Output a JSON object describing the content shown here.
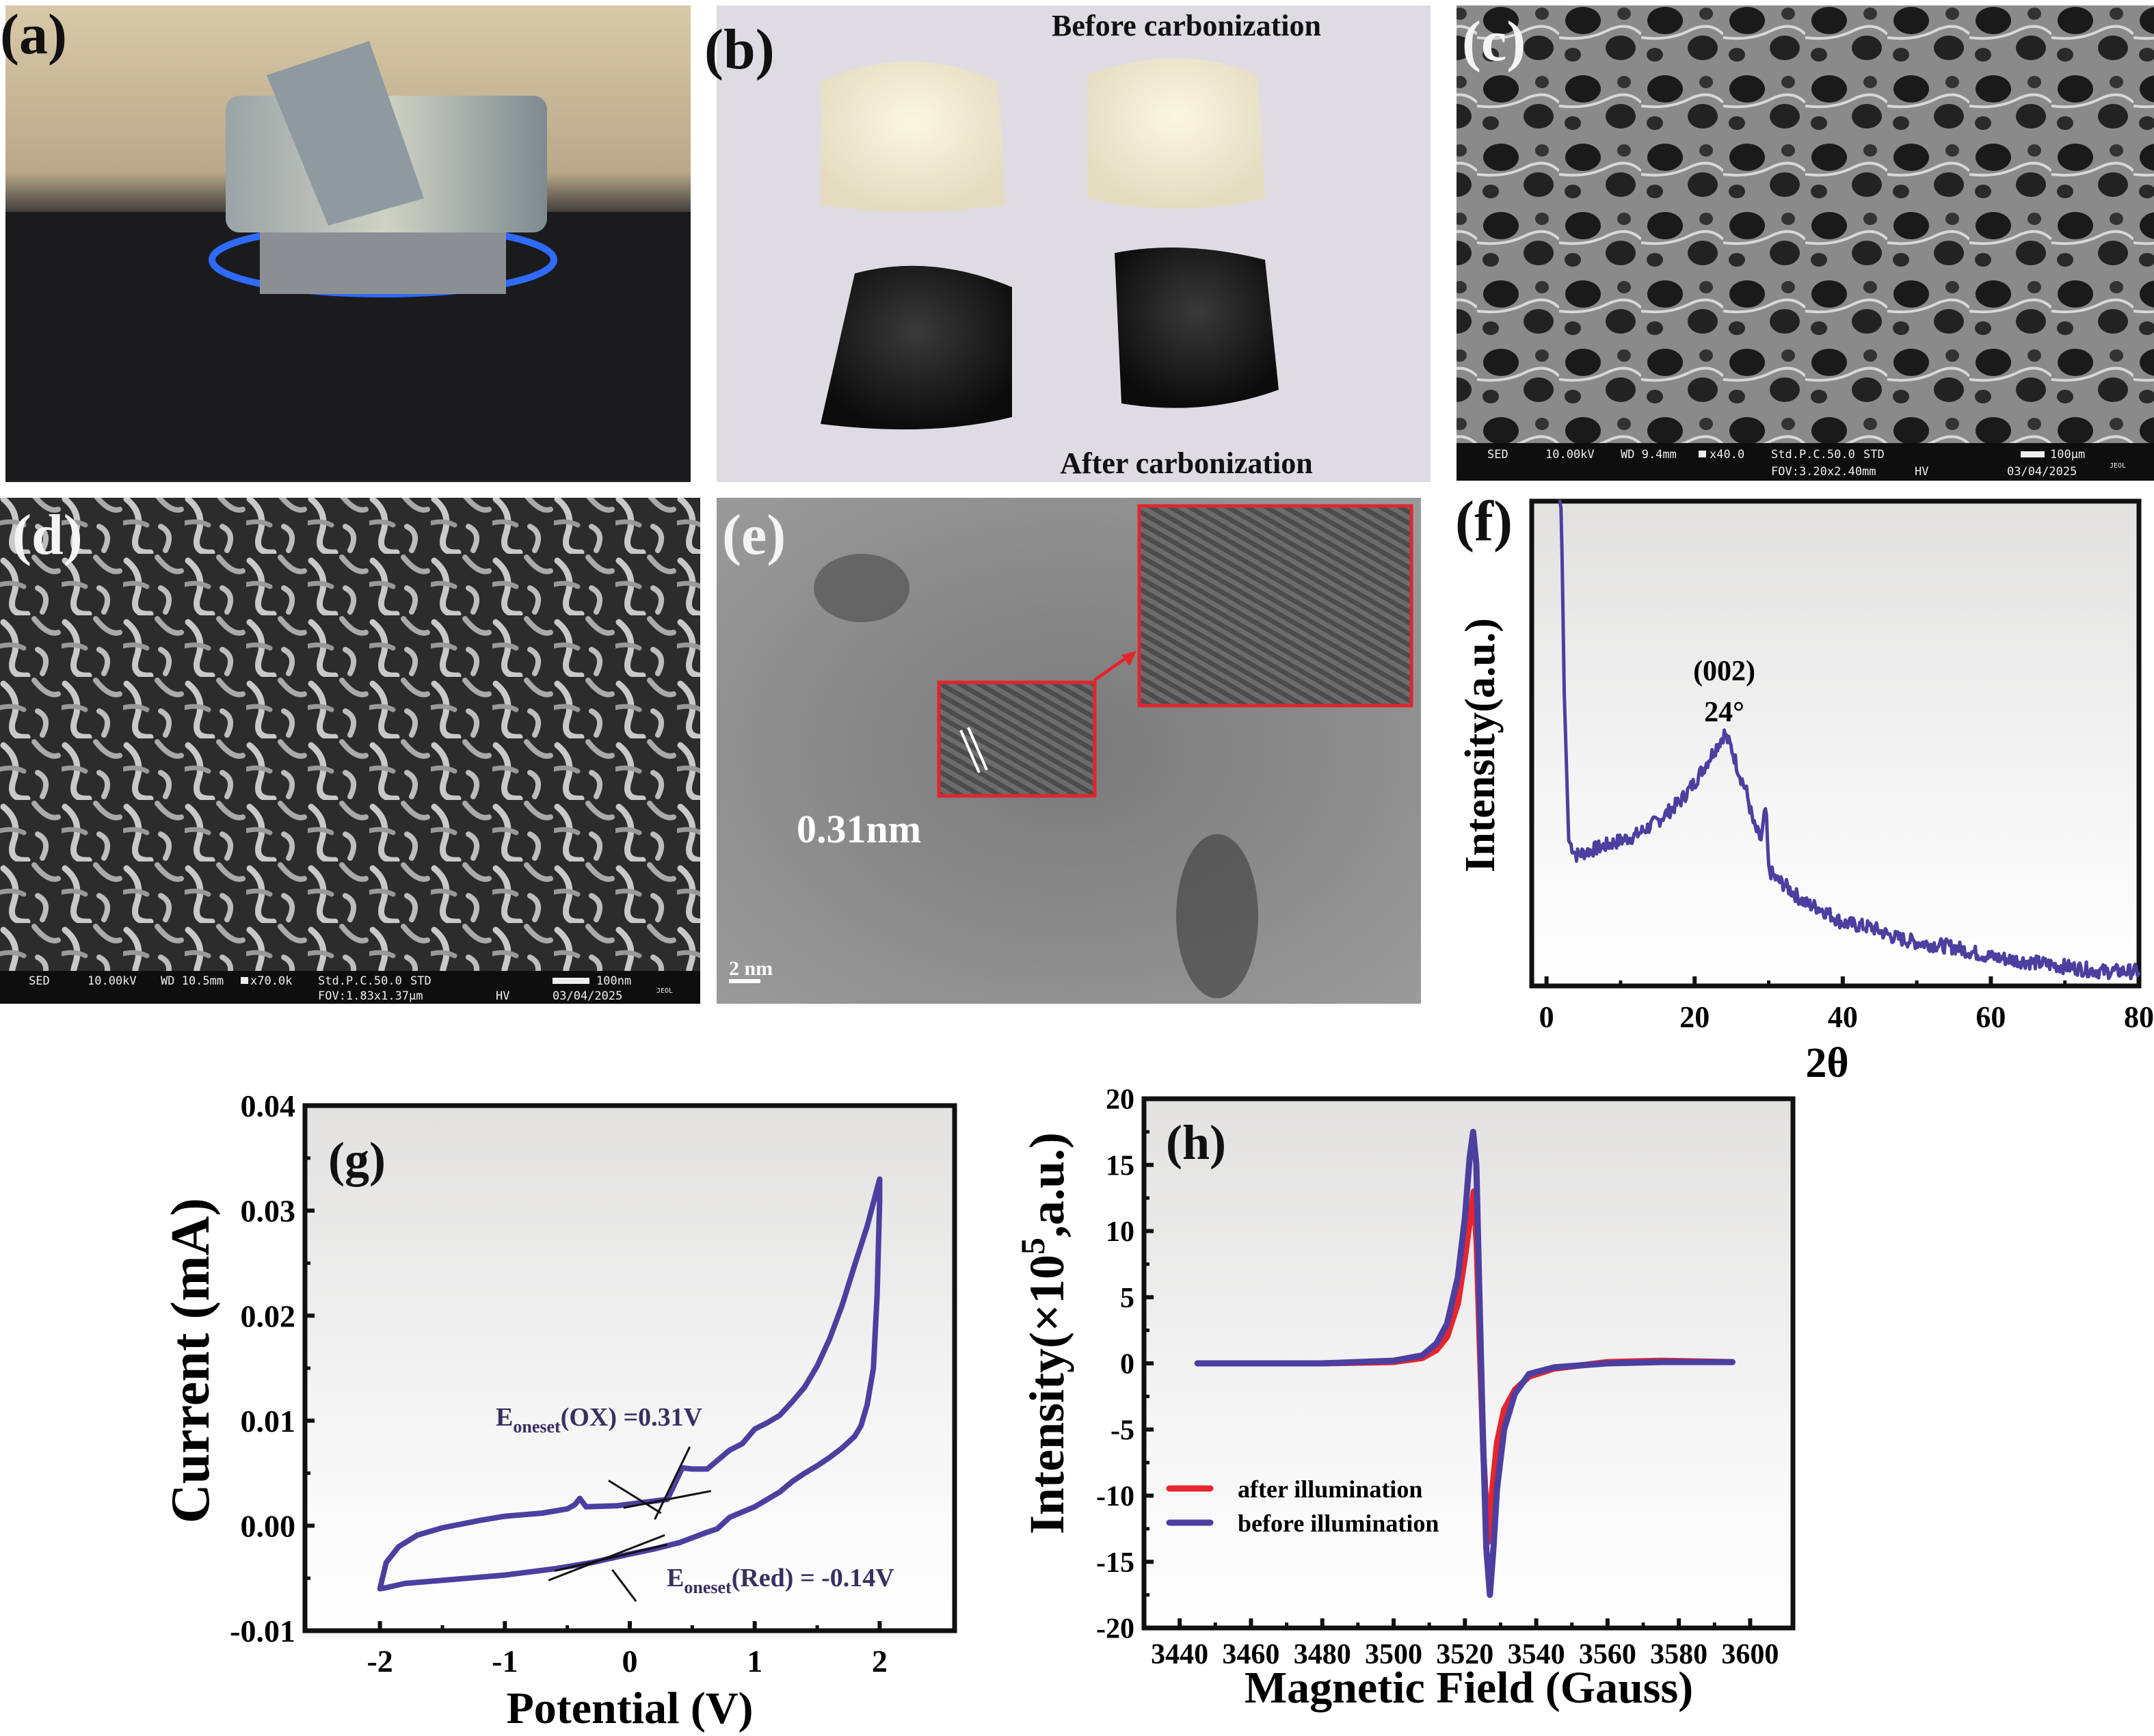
{
  "panels": {
    "a": {
      "label": "(a)"
    },
    "b": {
      "label": "(b)",
      "top_caption": "Before carbonization",
      "bottom_caption": "After carbonization"
    },
    "c": {
      "label": "(c)",
      "info": {
        "detector": "SED",
        "kv": "10.00kV",
        "wd": "WD 9.4mm",
        "mag": "x40.0",
        "mode": "Std.P.C.50.0",
        "std": "STD",
        "fov": "FOV:3.20x2.40mm",
        "hv": "HV",
        "scale": "100μm",
        "date": "03/04/2025",
        "brand": "JEOL"
      }
    },
    "d": {
      "label": "(d)",
      "info": {
        "detector": "SED",
        "kv": "10.00kV",
        "wd": "WD 10.5mm",
        "mag": "x70.0k",
        "mode": "Std.P.C.50.0",
        "std": "STD",
        "fov": "FOV:1.83x1.37μm",
        "hv": "HV",
        "scale": "100nm",
        "date": "03/04/2025",
        "brand": "JEOL"
      }
    },
    "e": {
      "label": "(e)",
      "spacing": "0.31nm",
      "scale": "2 nm"
    },
    "f": {
      "label": "(f)"
    },
    "g": {
      "label": "(g)"
    },
    "h": {
      "label": "(h)"
    }
  },
  "colors": {
    "series_blue": "#4b3fa0",
    "series_red": "#e8242c",
    "inset_box": "#e0262b"
  },
  "chart_data": [
    {
      "id": "f",
      "type": "line",
      "xlabel": "2θ",
      "ylabel": "Intensity(a.u.)",
      "xlim": [
        -2,
        80
      ],
      "ylim": [
        0,
        100
      ],
      "xticks": [
        0,
        20,
        40,
        60,
        80
      ],
      "xtick_labels": [
        "0",
        "20",
        "40",
        "60",
        "80"
      ],
      "yticks": [],
      "grid": false,
      "annotation": {
        "line1": "(002)",
        "line2": "24°",
        "x": 24
      },
      "series": [
        {
          "x": [
            1.8,
            2,
            2.4,
            3,
            4,
            6,
            8,
            10,
            12,
            15,
            18,
            20,
            22,
            24,
            25,
            26,
            27,
            28,
            29,
            29.6,
            30,
            31,
            32,
            35,
            37,
            40,
            44,
            47,
            50,
            55,
            60,
            65,
            70,
            75,
            80
          ],
          "y": [
            100,
            98,
            60,
            30,
            27,
            28,
            29,
            30,
            31,
            34,
            38,
            42,
            47,
            52,
            49,
            44,
            40,
            33,
            30,
            37,
            24,
            22,
            21,
            17,
            16,
            13,
            12,
            10,
            9,
            8,
            6,
            5,
            4,
            3,
            3
          ]
        }
      ]
    },
    {
      "id": "g",
      "type": "line",
      "xlabel": "Potential (V)",
      "ylabel": "Current (mA)",
      "xlim": [
        -2.6,
        2.6
      ],
      "ylim": [
        -0.01,
        0.04
      ],
      "xticks": [
        -2,
        -1,
        0,
        1,
        2
      ],
      "xtick_labels": [
        "-2",
        "-1",
        "0",
        "1",
        "2"
      ],
      "yticks": [
        -0.01,
        0,
        0.01,
        0.02,
        0.03,
        0.04
      ],
      "ytick_labels": [
        "-0.01",
        "0.00",
        "0.01",
        "0.02",
        "0.03",
        "0.04"
      ],
      "grid": false,
      "annotations": [
        {
          "main": "E",
          "sub": "oneset",
          "rest": "(OX) =0.31V",
          "value": 0.31
        },
        {
          "main": "E",
          "sub": "oneset",
          "rest": "(Red) = -0.14V",
          "value": -0.14
        }
      ],
      "series": [
        {
          "x": [
            -2,
            -1.95,
            -1.85,
            -1.7,
            -1.5,
            -1.2,
            -1,
            -0.7,
            -0.5,
            -0.44,
            -0.4,
            -0.35,
            -0.1,
            0.1,
            0.3,
            0.36,
            0.42,
            0.5,
            0.62,
            0.7,
            0.8,
            0.9,
            1,
            1.1,
            1.2,
            1.3,
            1.4,
            1.5,
            1.6,
            1.7,
            1.8,
            1.9,
            2,
            2,
            1.98,
            1.95,
            1.9,
            1.85,
            1.8,
            1.7,
            1.6,
            1.5,
            1.4,
            1.3,
            1.2,
            1.1,
            1,
            0.9,
            0.8,
            0.7,
            0.6,
            0.4,
            0.2,
            0,
            -0.3,
            -0.6,
            -1,
            -1.5,
            -1.8,
            -1.95,
            -2
          ],
          "y": [
            -0.006,
            -0.0035,
            -0.002,
            -0.0009,
            -0.0002,
            0.0005,
            0.0009,
            0.0012,
            0.0016,
            0.002,
            0.0026,
            0.0018,
            0.0019,
            0.0022,
            0.0025,
            0.004,
            0.0055,
            0.0054,
            0.0054,
            0.0062,
            0.0072,
            0.0078,
            0.0092,
            0.0098,
            0.0105,
            0.0118,
            0.0132,
            0.0152,
            0.0178,
            0.021,
            0.0248,
            0.0285,
            0.033,
            0.031,
            0.022,
            0.015,
            0.0115,
            0.0095,
            0.0085,
            0.0074,
            0.0065,
            0.0057,
            0.005,
            0.0042,
            0.0032,
            0.0025,
            0.0018,
            0.0013,
            0.0008,
            -0.0003,
            -0.0007,
            -0.0016,
            -0.0022,
            -0.0027,
            -0.0035,
            -0.0041,
            -0.0047,
            -0.0052,
            -0.0055,
            -0.0059,
            -0.006
          ]
        }
      ]
    },
    {
      "id": "h",
      "type": "line",
      "xlabel": "Magnetic Field (Gauss)",
      "ylabel": "Intensity(×10⁵,a.u.)",
      "ylabel_parts": {
        "pre": "Intensity(×10",
        "sup": "5",
        "post": ",a.u.)"
      },
      "xlim": [
        3430,
        3612
      ],
      "ylim": [
        -20,
        20
      ],
      "xticks": [
        3440,
        3460,
        3480,
        3500,
        3520,
        3540,
        3560,
        3580,
        3600
      ],
      "xtick_labels": [
        "3440",
        "3460",
        "3480",
        "3500",
        "3520",
        "3540",
        "3560",
        "3580",
        "3600"
      ],
      "yticks": [
        -20,
        -15,
        -10,
        -5,
        0,
        5,
        10,
        15,
        20
      ],
      "ytick_labels": [
        "-20",
        "-15",
        "-10",
        "-5",
        "0",
        "5",
        "10",
        "15",
        "20"
      ],
      "grid": false,
      "legend_position": "bottom-left",
      "series": [
        {
          "name": "after illumination",
          "color": "#e8242c",
          "x": [
            3445,
            3480,
            3500,
            3508,
            3512,
            3515,
            3518,
            3520,
            3521.5,
            3522.5,
            3523.3,
            3524.2,
            3525.2,
            3526.5,
            3527.5,
            3529,
            3531,
            3534,
            3538,
            3545,
            3560,
            3575,
            3595
          ],
          "y": [
            0,
            0,
            0.1,
            0.4,
            1,
            2,
            4.5,
            8,
            11,
            13,
            9,
            1,
            -7,
            -13.5,
            -10,
            -6,
            -3.5,
            -2,
            -1,
            -0.4,
            0.1,
            0.2,
            0.1
          ]
        },
        {
          "name": "before illumination",
          "color": "#4b3fa0",
          "x": [
            3445,
            3480,
            3500,
            3508,
            3512,
            3515,
            3518,
            3520,
            3521.3,
            3522.3,
            3523.2,
            3524,
            3525,
            3526,
            3527,
            3528,
            3529,
            3531,
            3534,
            3538,
            3545,
            3560,
            3575,
            3595
          ],
          "y": [
            0,
            0,
            0.2,
            0.6,
            1.5,
            3,
            6.5,
            11,
            15.5,
            17.5,
            15,
            6,
            -5,
            -14,
            -17.5,
            -14,
            -9.5,
            -5,
            -2.3,
            -0.8,
            -0.3,
            0,
            0.1,
            0.1
          ]
        }
      ]
    }
  ]
}
